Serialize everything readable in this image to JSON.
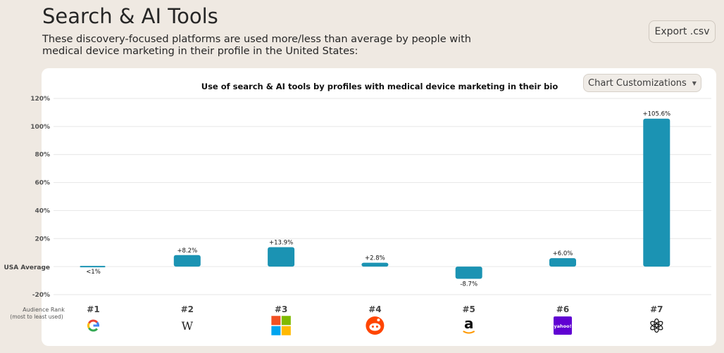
{
  "header": {
    "title": "Search & AI Tools",
    "subtitle": "These discovery-focused platforms are used more/less than average by people with medical device marketing in their profile in the United States:",
    "export_label": "Export .csv"
  },
  "card": {
    "customize_label": "Chart Customizations",
    "customize_icon": "caret-down-icon"
  },
  "chart_data": {
    "type": "bar",
    "title": "Use of search & AI tools by profiles with medical device marketing in their bio",
    "baseline_label": "USA Average",
    "ylim": [
      -20,
      120
    ],
    "yticks": [
      -20,
      20,
      40,
      60,
      80,
      100,
      120
    ],
    "ytick_labels": [
      "-20%",
      "20%",
      "40%",
      "60%",
      "80%",
      "100%",
      "120%"
    ],
    "grid": true,
    "bar_color": "#1b93b3",
    "categories": [
      "#1",
      "#2",
      "#3",
      "#4",
      "#5",
      "#6",
      "#7"
    ],
    "values": [
      0.3,
      8.2,
      13.9,
      2.8,
      -8.7,
      6.0,
      105.6
    ],
    "data_labels": [
      "<1%",
      "+8.2%",
      "+13.9%",
      "+2.8%",
      "-8.7%",
      "+6.0%",
      "+105.6%"
    ],
    "icons": [
      "google-icon",
      "wikipedia-icon",
      "microsoft-icon",
      "reddit-icon",
      "amazon-icon",
      "yahoo-icon",
      "openai-icon"
    ],
    "rank_label_line1": "Audience Rank",
    "rank_label_line2": "(most to least used)"
  },
  "logo_text": {
    "wikipedia": "W",
    "amazon": "a",
    "yahoo": "yahoo!"
  }
}
